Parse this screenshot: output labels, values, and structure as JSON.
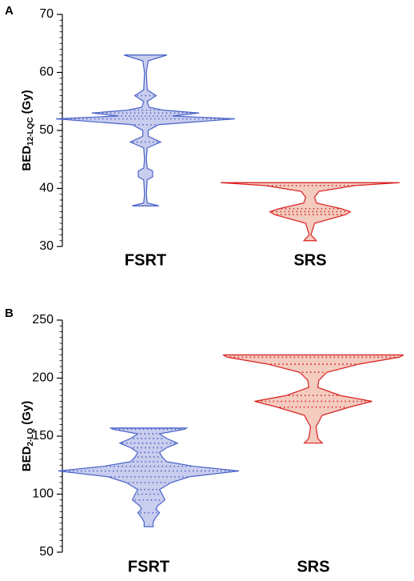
{
  "chart_data": [
    {
      "type": "violin",
      "panel_label": "A",
      "y_label": "BED",
      "y_label_sub": "12-LQC",
      "y_label_unit": "(Gy)",
      "categories": [
        "FSRT",
        "SRS"
      ],
      "ylim": [
        30,
        70
      ],
      "yticks": [
        30,
        40,
        50,
        60,
        70
      ],
      "minor_per_major": 10,
      "violins": [
        {
          "color": "#4a63c8",
          "fill": "#c9cdee",
          "y": [
            37,
            37,
            37.5,
            39,
            41.5,
            42,
            43,
            43.5,
            45,
            47,
            48,
            49,
            50,
            51,
            52,
            52.5,
            53,
            53.5,
            54,
            55,
            56,
            57,
            60,
            62,
            63,
            63
          ],
          "density": [
            0,
            0.15,
            0.02,
            0.01,
            0.02,
            0.08,
            0.08,
            0.02,
            0.01,
            0.02,
            0.17,
            0.03,
            0.03,
            0.15,
            1.0,
            0.3,
            0.6,
            0.2,
            0.04,
            0.02,
            0.12,
            0.02,
            0.01,
            0.03,
            0.24,
            0
          ]
        },
        {
          "color": "#d92020",
          "fill": "#f3cbbf",
          "y": [
            31,
            31,
            32,
            34,
            35.5,
            36,
            36.5,
            37.5,
            38.5,
            39.5,
            40.5,
            41,
            41
          ],
          "density": [
            0,
            0.07,
            0.01,
            0.05,
            0.4,
            0.45,
            0.35,
            0.07,
            0.05,
            0.1,
            0.5,
            1.0,
            0
          ]
        }
      ]
    },
    {
      "type": "violin",
      "panel_label": "B",
      "y_label": "BED",
      "y_label_sub": "2-LQ",
      "y_label_unit": "(Gy)",
      "categories": [
        "FSRT",
        "SRS"
      ],
      "ylim": [
        50,
        250
      ],
      "yticks": [
        50,
        100,
        150,
        200,
        250
      ],
      "minor_per_major": 10,
      "violins": [
        {
          "color": "#4a63c8",
          "fill": "#c9cdee",
          "y": [
            72,
            72,
            76,
            80,
            84,
            87,
            90,
            95,
            100,
            104,
            110,
            115,
            120,
            124,
            128,
            132,
            136,
            140,
            144,
            148,
            152,
            156,
            157,
            157
          ],
          "density": [
            0,
            0.05,
            0.05,
            0.08,
            0.12,
            0.08,
            0.1,
            0.18,
            0.15,
            0.12,
            0.25,
            0.45,
            1.0,
            0.5,
            0.2,
            0.15,
            0.12,
            0.2,
            0.32,
            0.2,
            0.12,
            0.4,
            0.42,
            0
          ]
        },
        {
          "color": "#d92020",
          "fill": "#f3cbbf",
          "y": [
            144,
            144,
            148,
            158,
            168,
            175,
            180,
            185,
            192,
            198,
            205,
            212,
            218,
            220,
            220
          ],
          "density": [
            0,
            0.1,
            0.05,
            0.03,
            0.1,
            0.4,
            0.65,
            0.3,
            0.05,
            0.06,
            0.15,
            0.5,
            0.95,
            1.0,
            0
          ]
        }
      ]
    }
  ]
}
